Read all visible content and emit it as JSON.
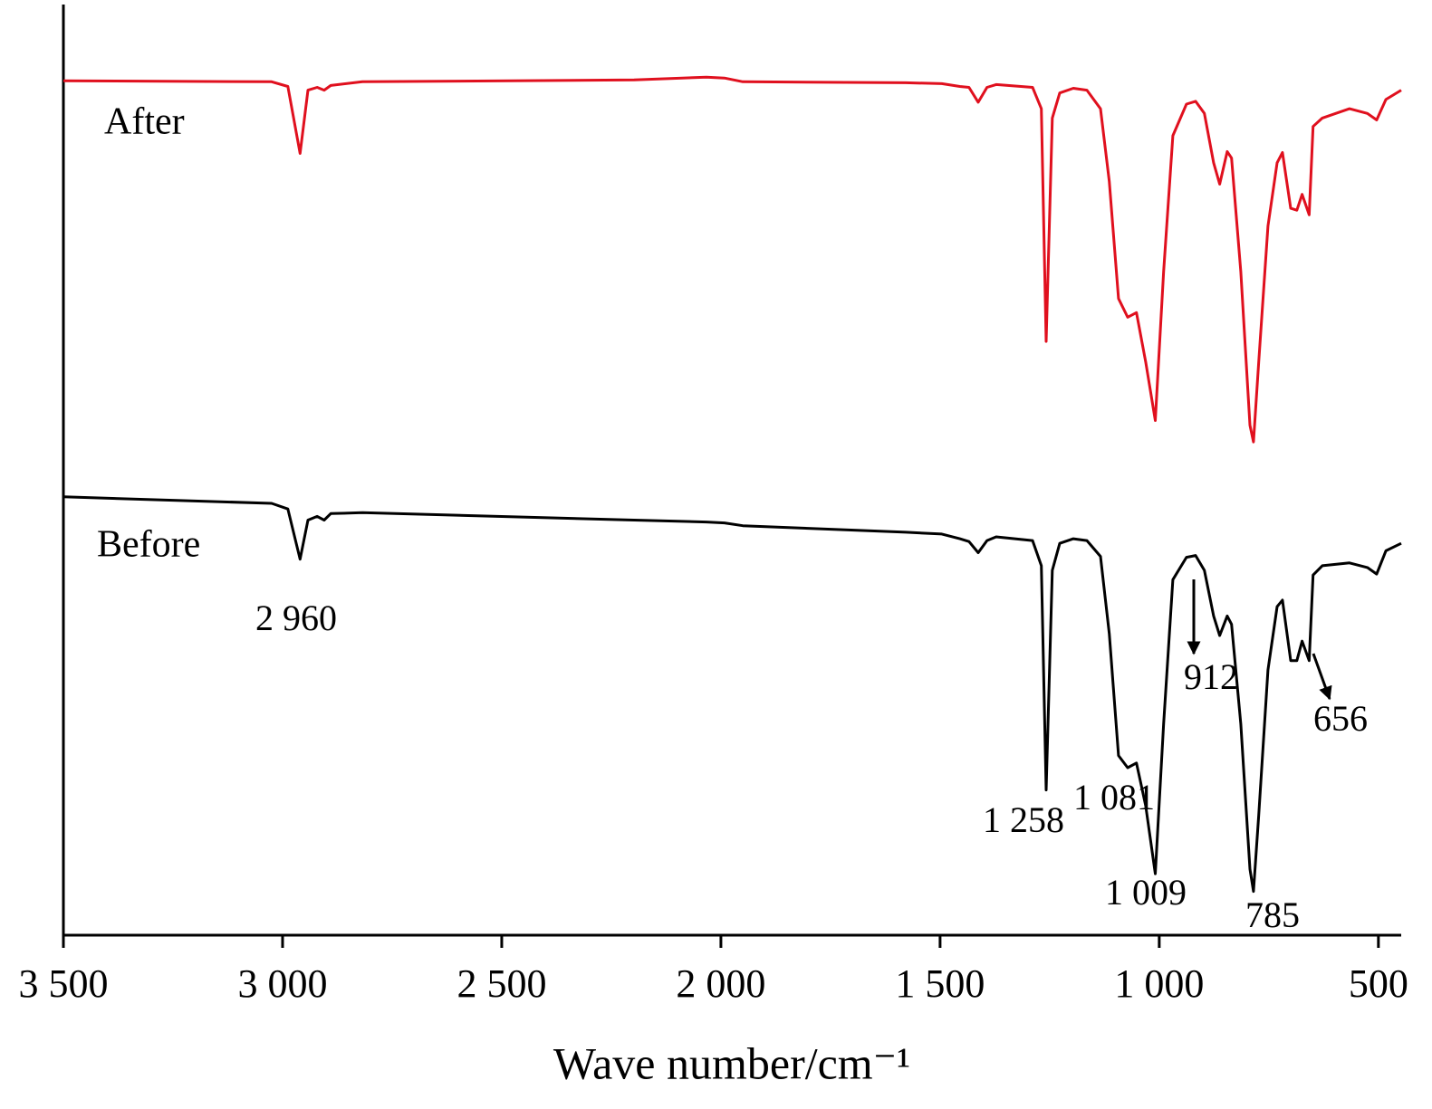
{
  "chart_data": {
    "type": "line",
    "xlabel": "Wave number/cm⁻¹",
    "xlim": [
      3500,
      448
    ],
    "ylim": [
      0,
      100
    ],
    "xticks": [
      {
        "value": 3500,
        "label": "3 500"
      },
      {
        "value": 3000,
        "label": "3 000"
      },
      {
        "value": 2500,
        "label": "2 500"
      },
      {
        "value": 2000,
        "label": "2 000"
      },
      {
        "value": 1500,
        "label": "1 500"
      },
      {
        "value": 1000,
        "label": "1 000"
      },
      500
    ],
    "x": [
      3500,
      3025,
      2988,
      2960,
      2942,
      2921,
      2905,
      2890,
      2818,
      2198,
      2033,
      1992,
      1950,
      1578,
      1496,
      1455,
      1434,
      1413,
      1393,
      1372,
      1289,
      1269,
      1258,
      1244,
      1227,
      1196,
      1165,
      1134,
      1114,
      1093,
      1072,
      1052,
      1031,
      1009,
      990,
      969,
      938,
      917,
      897,
      876,
      862,
      845,
      835,
      814,
      793,
      785,
      773,
      752,
      731,
      719,
      700,
      686,
      674,
      658,
      649,
      628,
      566,
      525,
      504,
      483,
      448
    ],
    "series": [
      {
        "name": "After",
        "color": "#e0101e",
        "values": [
          91.8,
          91.7,
          91.2,
          84.0,
          90.8,
          91.1,
          90.8,
          91.3,
          91.7,
          91.9,
          92.2,
          92.1,
          91.7,
          91.6,
          91.5,
          91.2,
          91.1,
          89.5,
          91.1,
          91.4,
          91.1,
          88.8,
          63.8,
          87.8,
          90.5,
          91.0,
          90.8,
          88.8,
          81.0,
          68.4,
          66.4,
          66.9,
          61.6,
          55.3,
          71.3,
          85.9,
          89.3,
          89.6,
          88.3,
          83.0,
          80.7,
          84.2,
          83.5,
          71.3,
          54.8,
          53.0,
          61.6,
          76.2,
          83.0,
          84.1,
          78.1,
          77.9,
          79.6,
          77.4,
          86.9,
          87.8,
          88.8,
          88.3,
          87.6,
          89.8,
          90.8
        ]
      },
      {
        "name": "Before",
        "color": "#000000",
        "values": [
          47.1,
          46.4,
          45.8,
          40.4,
          44.6,
          45.0,
          44.6,
          45.3,
          45.4,
          44.6,
          44.4,
          44.3,
          44.0,
          43.3,
          43.1,
          42.6,
          42.3,
          41.1,
          42.4,
          42.8,
          42.4,
          39.7,
          15.6,
          39.2,
          42.1,
          42.6,
          42.4,
          40.7,
          32.4,
          19.3,
          18.0,
          18.5,
          13.9,
          6.6,
          22.7,
          38.2,
          40.6,
          40.8,
          39.2,
          34.3,
          32.2,
          34.3,
          33.4,
          22.7,
          7.1,
          4.7,
          12.9,
          28.5,
          35.3,
          36.0,
          29.5,
          29.5,
          31.6,
          29.5,
          38.7,
          39.7,
          40.0,
          39.5,
          38.8,
          41.3,
          42.1
        ]
      }
    ],
    "annotations": [
      "2 960",
      "1 258",
      "1 081",
      "1 009",
      "912",
      "785",
      "656"
    ]
  }
}
